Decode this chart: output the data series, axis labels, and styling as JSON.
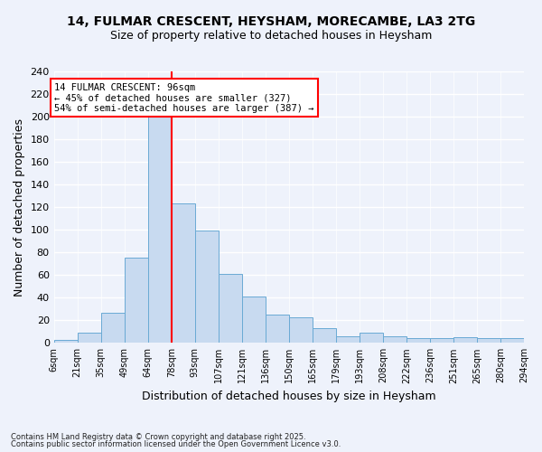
{
  "title1": "14, FULMAR CRESCENT, HEYSHAM, MORECAMBE, LA3 2TG",
  "title2": "Size of property relative to detached houses in Heysham",
  "xlabel": "Distribution of detached houses by size in Heysham",
  "ylabel": "Number of detached properties",
  "bin_labels": [
    "6sqm",
    "21sqm",
    "35sqm",
    "49sqm",
    "64sqm",
    "78sqm",
    "93sqm",
    "107sqm",
    "121sqm",
    "136sqm",
    "150sqm",
    "165sqm",
    "179sqm",
    "193sqm",
    "208sqm",
    "222sqm",
    "236sqm",
    "251sqm",
    "265sqm",
    "280sqm",
    "294sqm"
  ],
  "bin_values": [
    3,
    9,
    27,
    75,
    200,
    123,
    99,
    61,
    41,
    25,
    23,
    13,
    6,
    9,
    6,
    4,
    4,
    5,
    4,
    4
  ],
  "bar_color": "#c8daf0",
  "bar_edge_color": "#6aaad4",
  "vline_position": 5,
  "vline_color": "red",
  "annotation_title": "14 FULMAR CRESCENT: 96sqm",
  "annotation_line1": "← 45% of detached houses are smaller (327)",
  "annotation_line2": "54% of semi-detached houses are larger (387) →",
  "annotation_box_color": "white",
  "annotation_box_edge": "red",
  "ylim": [
    0,
    240
  ],
  "yticks": [
    0,
    20,
    40,
    60,
    80,
    100,
    120,
    140,
    160,
    180,
    200,
    220,
    240
  ],
  "footnote1": "Contains HM Land Registry data © Crown copyright and database right 2025.",
  "footnote2": "Contains public sector information licensed under the Open Government Licence v3.0.",
  "bg_color": "#eef2fb",
  "grid_color": "#ffffff"
}
